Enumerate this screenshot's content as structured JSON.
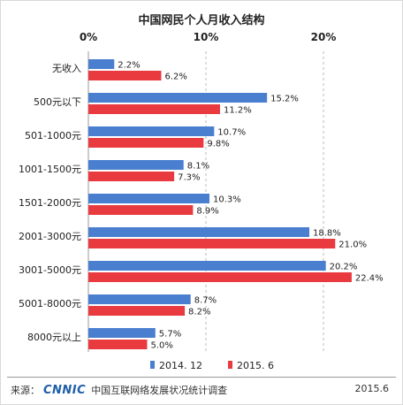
{
  "chart_data": {
    "type": "bar",
    "orientation": "horizontal",
    "title": "中国网民个人月收入结构",
    "categories": [
      "无收入",
      "500元以下",
      "501-1000元",
      "1001-1500元",
      "1501-2000元",
      "2001-3000元",
      "3001-5000元",
      "5001-8000元",
      "8000元以上"
    ],
    "series": [
      {
        "name": "2014. 12",
        "color": "#4a7fd0",
        "values": [
          2.2,
          15.2,
          10.7,
          8.1,
          10.3,
          18.8,
          20.2,
          8.7,
          5.7
        ]
      },
      {
        "name": "2015. 6",
        "color": "#e83a3f",
        "values": [
          6.2,
          11.2,
          9.8,
          7.3,
          8.9,
          21.0,
          22.4,
          8.2,
          5.0
        ]
      }
    ],
    "xlim": [
      0,
      25
    ],
    "xticks": [
      0,
      10,
      20
    ],
    "xtick_labels": [
      "0%",
      "10%",
      "20%"
    ],
    "grid": true,
    "legend_position": "bottom"
  },
  "footer": {
    "source_label": "来源：",
    "logo_text": "CNNIC",
    "source_org": "中国互联网络发展状况统计调查",
    "date": "2015.6"
  }
}
